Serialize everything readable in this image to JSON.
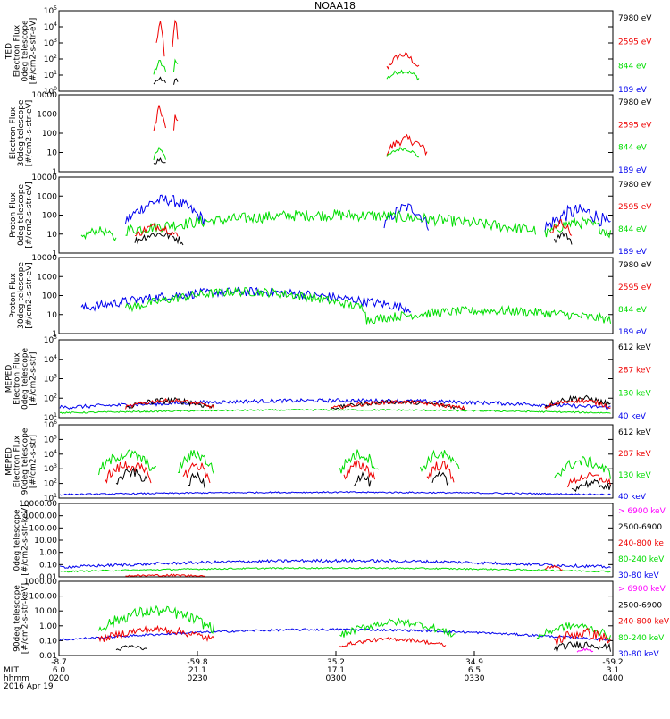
{
  "title": "NOAA18",
  "date_label": "2016 Apr 19",
  "colors": {
    "black": "#000000",
    "red": "#ee0000",
    "green": "#00dd00",
    "blue": "#0000ee",
    "magenta": "#ff00ff"
  },
  "x_axis": {
    "rows": [
      {
        "name": "",
        "values": [
          "-8.7",
          "-59.8",
          "35.2",
          "34.9",
          "-59.2"
        ]
      },
      {
        "name": "MLT",
        "values": [
          "6.0",
          "21.1",
          "17.1",
          "6.5",
          "3.1"
        ]
      },
      {
        "name": "hhmm",
        "values": [
          "0200",
          "0230",
          "0300",
          "0330",
          "0400"
        ]
      }
    ]
  },
  "chart_data": [
    {
      "type": "line",
      "ylabel": [
        "TED",
        "Electron Flux",
        "0deg telescope",
        "[#/cm2-s-str-eV]"
      ],
      "scale": "log",
      "y_ticks": [
        "10^0",
        "10^1",
        "10^2",
        "10^3",
        "10^4",
        "10^5"
      ],
      "legend": [
        {
          "text": "7980 eV",
          "color": "#000000"
        },
        {
          "text": "2595 eV",
          "color": "#ee0000"
        },
        {
          "text": "844 eV",
          "color": "#00dd00"
        },
        {
          "text": "189 eV",
          "color": "#0000ee"
        }
      ]
    },
    {
      "type": "line",
      "ylabel": [
        "Electron Flux",
        "30deg telescope",
        "[#/cm2-s-str-eV]"
      ],
      "scale": "log",
      "y_ticks": [
        "1",
        "10",
        "100",
        "1000",
        "10000"
      ],
      "legend": [
        {
          "text": "7980 eV",
          "color": "#000000"
        },
        {
          "text": "2595 eV",
          "color": "#ee0000"
        },
        {
          "text": "844 eV",
          "color": "#00dd00"
        },
        {
          "text": "189 eV",
          "color": "#0000ee"
        }
      ]
    },
    {
      "type": "line",
      "ylabel": [
        "Proton Flux",
        "0deg telescope",
        "[#/cm2-s-str-eV]"
      ],
      "scale": "log",
      "y_ticks": [
        "1",
        "10",
        "100",
        "1000",
        "10000"
      ],
      "legend": [
        {
          "text": "7980 eV",
          "color": "#000000"
        },
        {
          "text": "2595 eV",
          "color": "#ee0000"
        },
        {
          "text": "844 eV",
          "color": "#00dd00"
        },
        {
          "text": "189 eV",
          "color": "#0000ee"
        }
      ]
    },
    {
      "type": "line",
      "ylabel": [
        "Proton Flux",
        "30deg telescope",
        "[#/cm2-s-str-eV]"
      ],
      "scale": "log",
      "y_ticks": [
        "1",
        "10",
        "100",
        "1000",
        "10000"
      ],
      "legend": [
        {
          "text": "7980 eV",
          "color": "#000000"
        },
        {
          "text": "2595 eV",
          "color": "#ee0000"
        },
        {
          "text": "844 eV",
          "color": "#00dd00"
        },
        {
          "text": "189 eV",
          "color": "#0000ee"
        }
      ]
    },
    {
      "type": "line",
      "ylabel": [
        "MEPED",
        "Electron Flux",
        "0deg telescope",
        "[#/cm2-s-str]"
      ],
      "scale": "log",
      "y_ticks": [
        "10^1",
        "10^2",
        "10^3",
        "10^4",
        "10^5"
      ],
      "legend": [
        {
          "text": "612 keV",
          "color": "#000000"
        },
        {
          "text": "287 keV",
          "color": "#ee0000"
        },
        {
          "text": "130 keV",
          "color": "#00dd00"
        },
        {
          "text": "40 keV",
          "color": "#0000ee"
        }
      ]
    },
    {
      "type": "line",
      "ylabel": [
        "MEPED",
        "Electron Flux",
        "90deg telescope",
        "[#/cm2-s-str]"
      ],
      "scale": "log",
      "y_ticks": [
        "10^1",
        "10^2",
        "10^3",
        "10^4",
        "10^5",
        "10^6"
      ],
      "legend": [
        {
          "text": "612 keV",
          "color": "#000000"
        },
        {
          "text": "287 keV",
          "color": "#ee0000"
        },
        {
          "text": "130 keV",
          "color": "#00dd00"
        },
        {
          "text": "40 keV",
          "color": "#0000ee"
        }
      ]
    },
    {
      "type": "line",
      "ylabel": [
        "0deg telescope",
        "[#/cm2-s-str-keV]"
      ],
      "scale": "log",
      "y_ticks": [
        "0.01",
        "0.10",
        "1.00",
        "10.00",
        "100.00",
        "1000.00",
        "10000.00"
      ],
      "legend": [
        {
          "text": "> 6900 keV",
          "color": "#ff00ff"
        },
        {
          "text": "2500-6900",
          "color": "#000000"
        },
        {
          "text": "240-800 ke",
          "color": "#ee0000"
        },
        {
          "text": "80-240 keV",
          "color": "#00dd00"
        },
        {
          "text": "30-80 keV",
          "color": "#0000ee"
        }
      ]
    },
    {
      "type": "line",
      "ylabel": [
        "90deg telescope",
        "[#/cm2-s-str-keV]"
      ],
      "scale": "log",
      "y_ticks": [
        "0.01",
        "0.10",
        "1.00",
        "10.00",
        "100.00",
        "1000.00"
      ],
      "legend": [
        {
          "text": "> 6900 keV",
          "color": "#ff00ff"
        },
        {
          "text": "2500-6900",
          "color": "#000000"
        },
        {
          "text": "240-800 keV",
          "color": "#ee0000"
        },
        {
          "text": "80-240 keV",
          "color": "#00dd00"
        },
        {
          "text": "30-80 keV",
          "color": "#0000ee"
        }
      ]
    }
  ]
}
